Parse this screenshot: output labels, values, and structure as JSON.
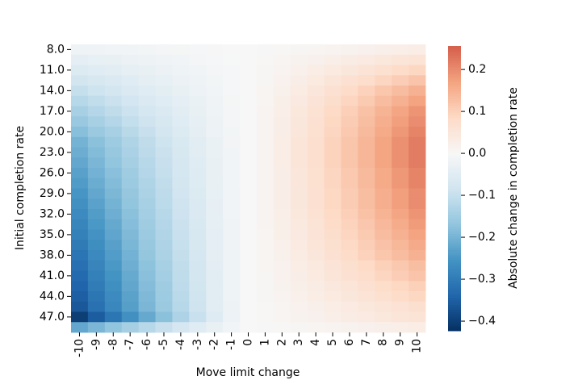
{
  "chart_data": {
    "type": "heatmap",
    "xlabel": "Move limit change",
    "ylabel": "Initial completion rate",
    "x_categories": [
      "-10",
      "-9",
      "-8",
      "-7",
      "-6",
      "-5",
      "-4",
      "-3",
      "-2",
      "-1",
      "0",
      "1",
      "2",
      "3",
      "4",
      "5",
      "6",
      "7",
      "8",
      "9",
      "10"
    ],
    "y_categories": [
      "8.0",
      null,
      "11.0",
      null,
      "14.0",
      null,
      "17.0",
      null,
      "20.0",
      null,
      "23.0",
      null,
      "26.0",
      null,
      "29.0",
      null,
      "32.0",
      null,
      "35.0",
      null,
      "38.0",
      null,
      "41.0",
      null,
      "44.0",
      null,
      "47.0",
      null
    ],
    "colormap": "RdBu_r",
    "colorbar": {
      "label": "Absolute change in completion rate",
      "lim": [
        -0.423,
        0.256
      ],
      "center": 0,
      "ticks": [
        {
          "value": -0.4,
          "label": "−0.4"
        },
        {
          "value": -0.3,
          "label": "−0.3"
        },
        {
          "value": -0.2,
          "label": "−0.2"
        },
        {
          "value": -0.1,
          "label": "−0.1"
        },
        {
          "value": 0,
          "label": "0.0"
        },
        0.1,
        0.2
      ]
    },
    "values": [
      [
        -0.02,
        -0.018,
        -0.015,
        -0.013,
        -0.011,
        -0.009,
        -0.007,
        -0.005,
        -0.003,
        -0.001,
        0,
        0.002,
        0.004,
        0.007,
        0.01,
        0.013,
        0.016,
        0.02,
        0.023,
        0.026,
        0.03
      ],
      [
        -0.04,
        -0.035,
        -0.031,
        -0.026,
        -0.022,
        -0.018,
        -0.013,
        -0.01,
        -0.006,
        -0.002,
        0,
        0.004,
        0.008,
        0.014,
        0.02,
        0.026,
        0.032,
        0.039,
        0.046,
        0.053,
        0.06
      ],
      [
        -0.06,
        -0.053,
        -0.046,
        -0.039,
        -0.032,
        -0.026,
        -0.02,
        -0.014,
        -0.008,
        -0.004,
        0,
        0.005,
        0.013,
        0.022,
        0.03,
        0.04,
        0.049,
        0.059,
        0.069,
        0.079,
        0.09
      ],
      [
        -0.08,
        -0.07,
        -0.062,
        -0.052,
        -0.043,
        -0.035,
        -0.026,
        -0.019,
        -0.011,
        -0.005,
        0,
        0.007,
        0.017,
        0.029,
        0.04,
        0.053,
        0.065,
        0.078,
        0.092,
        0.106,
        0.12
      ],
      [
        -0.1,
        -0.088,
        -0.077,
        -0.065,
        -0.054,
        -0.044,
        -0.033,
        -0.024,
        -0.014,
        -0.006,
        0,
        0.009,
        0.021,
        0.036,
        0.05,
        0.066,
        0.081,
        0.098,
        0.116,
        0.132,
        0.15
      ],
      [
        -0.12,
        -0.106,
        -0.092,
        -0.078,
        -0.065,
        -0.053,
        -0.04,
        -0.029,
        -0.017,
        -0.007,
        0,
        0.01,
        0.024,
        0.041,
        0.056,
        0.075,
        0.092,
        0.111,
        0.131,
        0.15,
        0.17
      ],
      [
        -0.14,
        -0.123,
        -0.108,
        -0.091,
        -0.076,
        -0.062,
        -0.046,
        -0.034,
        -0.02,
        -0.008,
        0,
        0.011,
        0.027,
        0.046,
        0.063,
        0.084,
        0.103,
        0.124,
        0.146,
        0.167,
        0.19
      ],
      [
        -0.16,
        -0.141,
        -0.123,
        -0.104,
        -0.086,
        -0.07,
        -0.053,
        -0.038,
        -0.022,
        -0.01,
        0,
        0.012,
        0.028,
        0.048,
        0.066,
        0.088,
        0.108,
        0.13,
        0.154,
        0.176,
        0.2
      ],
      [
        -0.18,
        -0.158,
        -0.139,
        -0.117,
        -0.097,
        -0.079,
        -0.059,
        -0.043,
        -0.025,
        -0.011,
        0,
        0.013,
        0.029,
        0.05,
        0.069,
        0.092,
        0.113,
        0.137,
        0.162,
        0.185,
        0.21
      ],
      [
        -0.2,
        -0.176,
        -0.154,
        -0.13,
        -0.108,
        -0.088,
        -0.066,
        -0.048,
        -0.028,
        -0.012,
        0,
        0.013,
        0.031,
        0.053,
        0.073,
        0.097,
        0.119,
        0.143,
        0.169,
        0.194,
        0.22
      ],
      [
        -0.21,
        -0.185,
        -0.162,
        -0.137,
        -0.113,
        -0.092,
        -0.069,
        -0.05,
        -0.029,
        -0.013,
        0,
        0.013,
        0.031,
        0.053,
        0.073,
        0.097,
        0.119,
        0.143,
        0.169,
        0.194,
        0.22
      ],
      [
        -0.22,
        -0.194,
        -0.169,
        -0.143,
        -0.119,
        -0.097,
        -0.073,
        -0.053,
        -0.031,
        -0.013,
        0,
        0.013,
        0.031,
        0.053,
        0.073,
        0.097,
        0.119,
        0.143,
        0.169,
        0.194,
        0.22
      ],
      [
        -0.23,
        -0.202,
        -0.177,
        -0.15,
        -0.124,
        -0.101,
        -0.076,
        -0.055,
        -0.032,
        -0.014,
        0,
        0.013,
        0.029,
        0.05,
        0.069,
        0.092,
        0.113,
        0.137,
        0.162,
        0.185,
        0.21
      ],
      [
        -0.24,
        -0.211,
        -0.185,
        -0.156,
        -0.13,
        -0.106,
        -0.079,
        -0.058,
        -0.034,
        -0.014,
        0,
        0.013,
        0.029,
        0.05,
        0.069,
        0.092,
        0.113,
        0.137,
        0.162,
        0.185,
        0.21
      ],
      [
        -0.25,
        -0.22,
        -0.193,
        -0.163,
        -0.135,
        -0.11,
        -0.083,
        -0.06,
        -0.035,
        -0.015,
        0,
        0.012,
        0.028,
        0.048,
        0.066,
        0.088,
        0.108,
        0.13,
        0.154,
        0.176,
        0.2
      ],
      [
        -0.26,
        -0.229,
        -0.2,
        -0.169,
        -0.14,
        -0.114,
        -0.086,
        -0.062,
        -0.036,
        -0.016,
        0,
        0.012,
        0.028,
        0.048,
        0.066,
        0.088,
        0.108,
        0.13,
        0.154,
        0.176,
        0.2
      ],
      [
        -0.27,
        -0.238,
        -0.208,
        -0.176,
        -0.146,
        -0.119,
        -0.089,
        -0.065,
        -0.038,
        -0.016,
        0,
        0.011,
        0.027,
        0.046,
        0.063,
        0.084,
        0.103,
        0.124,
        0.146,
        0.167,
        0.19
      ],
      [
        -0.28,
        -0.246,
        -0.216,
        -0.182,
        -0.151,
        -0.123,
        -0.092,
        -0.067,
        -0.039,
        -0.017,
        0,
        0.011,
        0.025,
        0.043,
        0.059,
        0.079,
        0.097,
        0.117,
        0.139,
        0.158,
        0.18
      ],
      [
        -0.29,
        -0.255,
        -0.223,
        -0.189,
        -0.157,
        -0.128,
        -0.096,
        -0.07,
        -0.041,
        -0.017,
        0,
        0.01,
        0.024,
        0.041,
        0.056,
        0.075,
        0.092,
        0.111,
        0.131,
        0.15,
        0.17
      ],
      [
        -0.3,
        -0.264,
        -0.231,
        -0.195,
        -0.162,
        -0.132,
        -0.099,
        -0.072,
        -0.042,
        -0.018,
        0,
        0.01,
        0.022,
        0.038,
        0.053,
        0.07,
        0.086,
        0.104,
        0.123,
        0.141,
        0.16
      ],
      [
        -0.31,
        -0.273,
        -0.239,
        -0.202,
        -0.167,
        -0.136,
        -0.102,
        -0.074,
        -0.043,
        -0.019,
        0,
        0.009,
        0.021,
        0.036,
        0.05,
        0.066,
        0.081,
        0.098,
        0.116,
        0.132,
        0.15
      ],
      [
        -0.32,
        -0.282,
        -0.246,
        -0.208,
        -0.173,
        -0.141,
        -0.106,
        -0.077,
        -0.045,
        -0.019,
        0,
        0.008,
        0.018,
        0.031,
        0.043,
        0.057,
        0.07,
        0.085,
        0.1,
        0.114,
        0.13
      ],
      [
        -0.33,
        -0.29,
        -0.254,
        -0.215,
        -0.178,
        -0.145,
        -0.109,
        -0.079,
        -0.046,
        -0.02,
        0,
        0.007,
        0.017,
        0.029,
        0.04,
        0.053,
        0.065,
        0.078,
        0.092,
        0.106,
        0.12
      ],
      [
        -0.34,
        -0.299,
        -0.262,
        -0.221,
        -0.184,
        -0.15,
        -0.112,
        -0.082,
        -0.048,
        -0.02,
        0,
        0.006,
        0.014,
        0.024,
        0.033,
        0.044,
        0.054,
        0.065,
        0.077,
        0.088,
        0.1
      ],
      [
        -0.35,
        -0.308,
        -0.27,
        -0.228,
        -0.189,
        -0.154,
        -0.116,
        -0.084,
        -0.049,
        -0.021,
        0,
        0.005,
        0.013,
        0.022,
        0.03,
        0.04,
        0.049,
        0.059,
        0.069,
        0.079,
        0.09
      ],
      [
        -0.36,
        -0.317,
        -0.277,
        -0.234,
        -0.194,
        -0.158,
        -0.119,
        -0.086,
        -0.05,
        -0.022,
        0,
        0.004,
        0.01,
        0.017,
        0.023,
        0.031,
        0.038,
        0.046,
        0.054,
        0.062,
        0.07
      ],
      [
        -0.4,
        -0.352,
        -0.308,
        -0.26,
        -0.216,
        -0.176,
        -0.132,
        -0.096,
        -0.056,
        -0.024,
        0,
        0.004,
        0.008,
        0.014,
        0.02,
        0.026,
        0.032,
        0.039,
        0.046,
        0.053,
        0.06
      ],
      [
        -0.22,
        -0.194,
        -0.169,
        -0.143,
        -0.119,
        -0.097,
        -0.073,
        -0.053,
        -0.031,
        -0.013,
        0,
        0.002,
        0.004,
        0.007,
        0.01,
        0.013,
        0.016,
        0.02,
        0.023,
        0.026,
        0.03
      ]
    ]
  }
}
